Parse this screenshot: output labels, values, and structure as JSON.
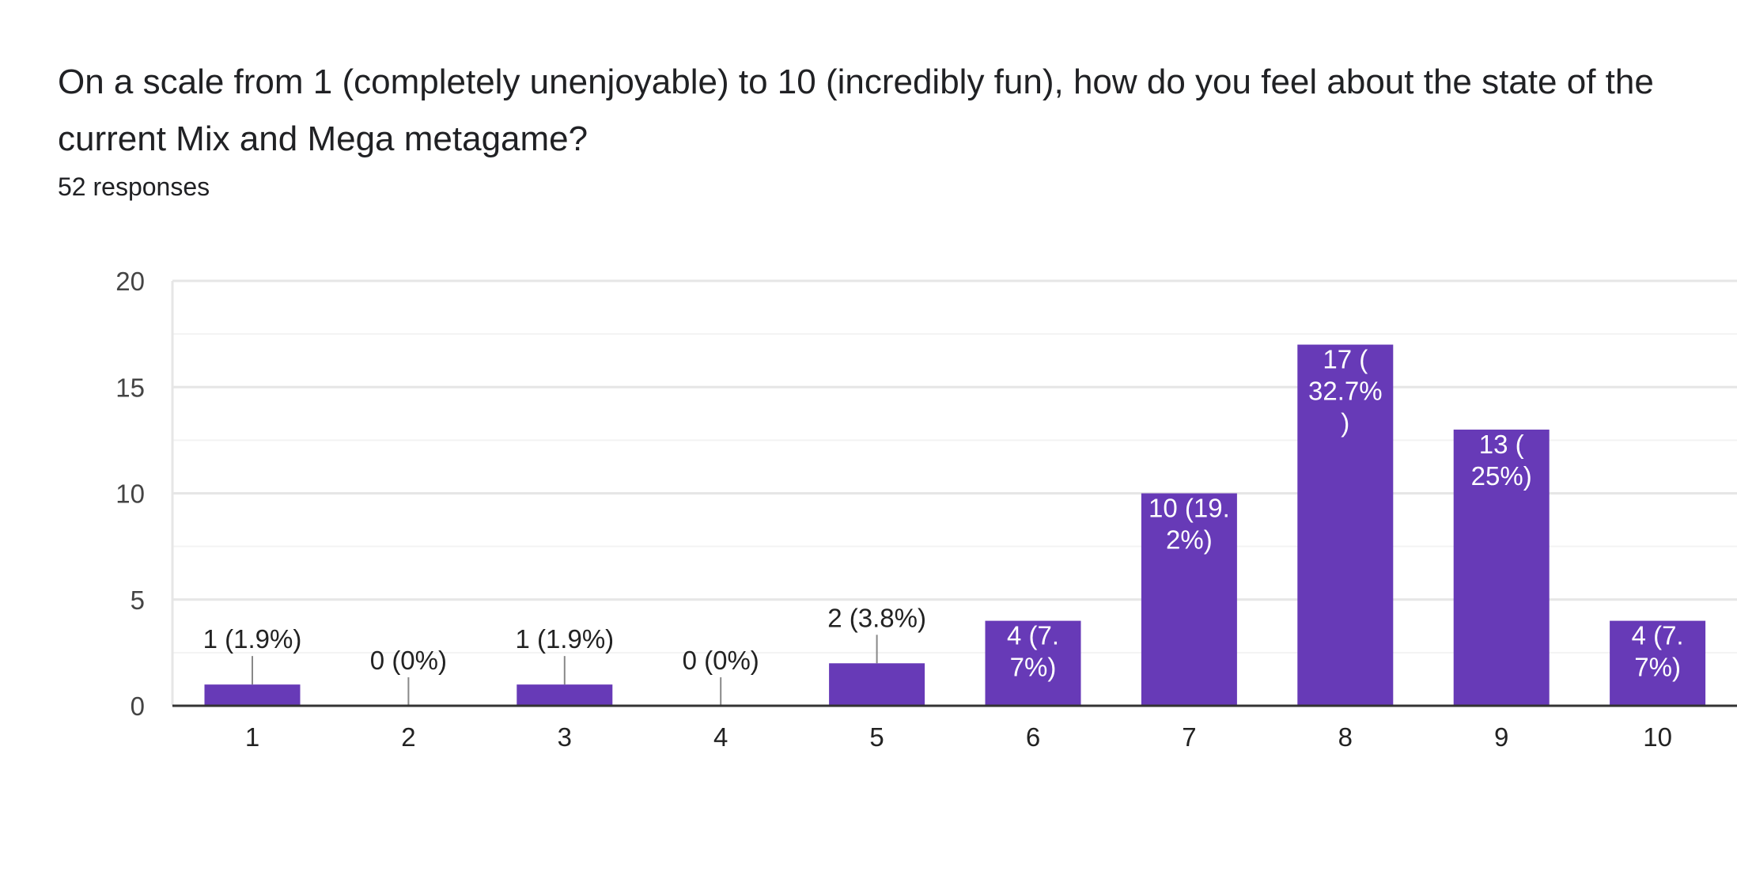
{
  "question": "On a scale from 1 (completely unenjoyable) to 10 (incredibly fun), how do you feel about the state of the current Mix and Mega metagame?",
  "responses": "52 responses",
  "colors": {
    "bar": "#673ab7",
    "grid": "#e8e8e8",
    "axis": "#333333",
    "leader": "#888888"
  },
  "chart_data": {
    "type": "bar",
    "title": "",
    "xlabel": "",
    "ylabel": "",
    "categories": [
      "1",
      "2",
      "3",
      "4",
      "5",
      "6",
      "7",
      "8",
      "9",
      "10"
    ],
    "values": [
      1,
      0,
      1,
      0,
      2,
      4,
      10,
      17,
      13,
      4
    ],
    "data_labels": [
      [
        "1 (1.9%)"
      ],
      [
        "0 (0%)"
      ],
      [
        "1 (1.9%)"
      ],
      [
        "0 (0%)"
      ],
      [
        "2 (3.8%)"
      ],
      [
        "4 (7.",
        "7%)"
      ],
      [
        "10 (19.",
        "2%)"
      ],
      [
        "17 (",
        "32.7%",
        ")"
      ],
      [
        "13 (",
        "25%)"
      ],
      [
        "4 (7.",
        "7%)"
      ]
    ],
    "ylim": [
      0,
      20
    ],
    "yticks": [
      "0",
      "5",
      "10",
      "15",
      "20"
    ],
    "grid": true,
    "legend": "none"
  }
}
